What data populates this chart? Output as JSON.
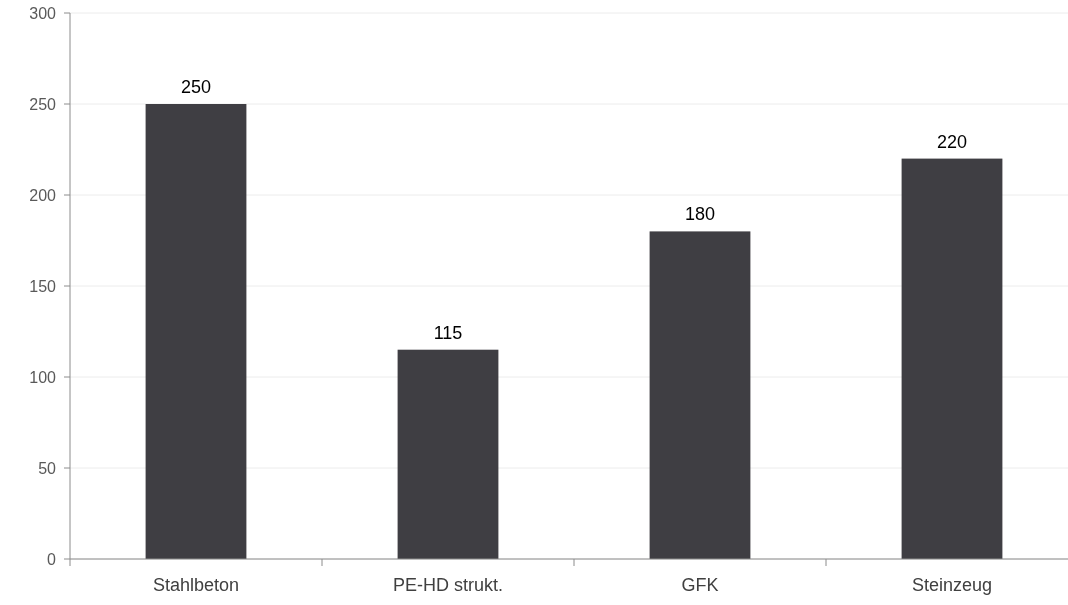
{
  "chart_data": {
    "type": "bar",
    "categories": [
      "Stahlbeton",
      "PE-HD strukt.",
      "GFK",
      "Steinzeug"
    ],
    "values": [
      250,
      115,
      180,
      220
    ],
    "color": "#3f3e43",
    "ylim": [
      0,
      300
    ],
    "yticks": [
      0,
      50,
      100,
      150,
      200,
      250,
      300
    ],
    "grid": "y",
    "data_labels": true
  }
}
